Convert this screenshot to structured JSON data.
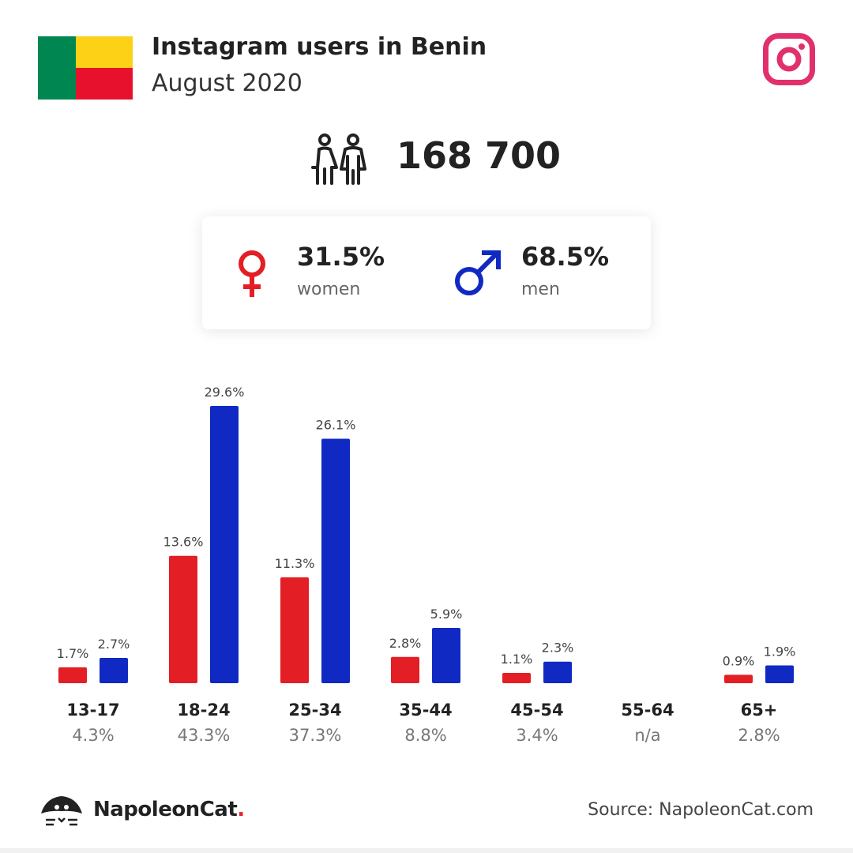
{
  "header": {
    "title": "Instagram users in Benin",
    "subtitle": "August 2020",
    "flag_colors": [
      "#008751",
      "#FCD116",
      "#E8112D"
    ],
    "platform_icon": "instagram-icon",
    "platform_color": "#E1306C"
  },
  "summary": {
    "total_icon": "people-icon",
    "total_users": "168 700",
    "women": {
      "icon": "female-symbol-icon",
      "percent": "31.5%",
      "label": "women",
      "color": "#E31E24"
    },
    "men": {
      "icon": "male-symbol-icon",
      "percent": "68.5%",
      "label": "men",
      "color": "#1129C3"
    }
  },
  "chart_data": {
    "type": "bar",
    "categories": [
      "13-17",
      "18-24",
      "25-34",
      "35-44",
      "45-54",
      "55-64",
      "65+"
    ],
    "category_totals": [
      "4.3%",
      "43.3%",
      "37.3%",
      "8.8%",
      "3.4%",
      "n/a",
      "2.8%"
    ],
    "series": [
      {
        "values": [
          1.7,
          13.6,
          11.3,
          2.8,
          1.1,
          null,
          0.9
        ],
        "labels": [
          "1.7%",
          "13.6%",
          "11.3%",
          "2.8%",
          "1.1%",
          "",
          "0.9%"
        ],
        "color": "#E31E24"
      },
      {
        "values": [
          2.7,
          29.6,
          26.1,
          5.9,
          2.3,
          null,
          1.9
        ],
        "labels": [
          "2.7%",
          "29.6%",
          "26.1%",
          "5.9%",
          "2.3%",
          "",
          "1.9%"
        ],
        "color": "#1129C3"
      }
    ],
    "ylim": [
      0,
      29.6
    ],
    "grid": false,
    "legend": "none"
  },
  "footer": {
    "brand": "NapoleonCat",
    "brand_dot": ".",
    "brand_icon": "napoleoncat-logo-icon",
    "source": "Source: NapoleonCat.com"
  }
}
